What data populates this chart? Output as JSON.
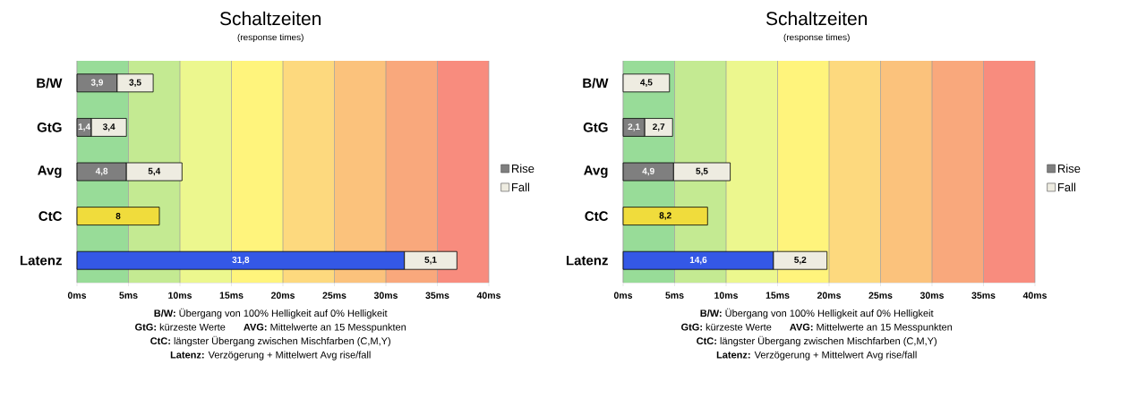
{
  "chart_data": [
    {
      "type": "bar",
      "orientation": "horizontal",
      "stacked": true,
      "title": "Schaltzeiten",
      "subtitle": "(response times)",
      "categories": [
        "B/W",
        "GtG",
        "Avg",
        "CtC",
        "Latenz"
      ],
      "series": [
        {
          "name": "Rise",
          "color": "#7f7f7f",
          "colors": [
            "#7f7f7f",
            "#7f7f7f",
            "#7f7f7f",
            "#f0dc3c",
            "#3458e6"
          ],
          "values": [
            3.9,
            1.4,
            4.8,
            8,
            31.8
          ],
          "value_labels": [
            "3,9",
            "1,4",
            "4,8",
            "8",
            "31,8"
          ]
        },
        {
          "name": "Fall",
          "color": "#eeece1",
          "values": [
            3.5,
            3.4,
            5.4,
            null,
            5.1
          ],
          "value_labels": [
            "3,5",
            "3,4",
            "5,4",
            null,
            "5,1"
          ]
        }
      ],
      "xlim": [
        0,
        40
      ],
      "xticks": [
        {
          "value": 0,
          "label": "0ms"
        },
        {
          "value": 5,
          "label": "5ms"
        },
        {
          "value": 10,
          "label": "10ms"
        },
        {
          "value": 15,
          "label": "15ms"
        },
        {
          "value": 20,
          "label": "20ms"
        },
        {
          "value": 25,
          "label": "25ms"
        },
        {
          "value": 30,
          "label": "30ms"
        },
        {
          "value": 35,
          "label": "35ms"
        },
        {
          "value": 40,
          "label": "40ms"
        }
      ],
      "grid": "x",
      "legend": "right",
      "bands": [
        {
          "axis": "x",
          "from": 0,
          "to": 5,
          "color": "#98dc98"
        },
        {
          "axis": "x",
          "from": 5,
          "to": 10,
          "color": "#c4ea92"
        },
        {
          "axis": "x",
          "from": 10,
          "to": 15,
          "color": "#ecf78e"
        },
        {
          "axis": "x",
          "from": 15,
          "to": 20,
          "color": "#fff47c"
        },
        {
          "axis": "x",
          "from": 20,
          "to": 25,
          "color": "#fdd97e"
        },
        {
          "axis": "x",
          "from": 25,
          "to": 30,
          "color": "#fbc27c"
        },
        {
          "axis": "x",
          "from": 30,
          "to": 35,
          "color": "#f9a87c"
        },
        {
          "axis": "x",
          "from": 35,
          "to": 40,
          "color": "#f88c7e"
        }
      ],
      "annotations": [
        "**B/W:** Übergang von 100% Helligkeit auf 0% Helligkeit",
        "**GtG:** kürzeste Werte",
        "**AVG:** Mittelwerte an 15 Messpunkten",
        "**CtC:** längster Übergang zwischen Mischfarben (C,M,Y)",
        "**Latenz:** Verzögerung + Mittelwert Avg rise/fall"
      ]
    },
    {
      "type": "bar",
      "orientation": "horizontal",
      "stacked": true,
      "title": "Schaltzeiten",
      "subtitle": "(response times)",
      "categories": [
        "B/W",
        "GtG",
        "Avg",
        "CtC",
        "Latenz"
      ],
      "series": [
        {
          "name": "Rise",
          "color": "#7f7f7f",
          "colors": [
            "#7f7f7f",
            "#7f7f7f",
            "#7f7f7f",
            "#f0dc3c",
            "#3458e6"
          ],
          "values": [
            null,
            2.1,
            4.9,
            8.2,
            14.6
          ],
          "value_labels": [
            null,
            "2,1",
            "4,9",
            "8,2",
            "14,6"
          ]
        },
        {
          "name": "Fall",
          "color": "#eeece1",
          "values": [
            4.5,
            2.7,
            5.5,
            null,
            5.2
          ],
          "value_labels": [
            "4,5",
            "2,7",
            "5,5",
            null,
            "5,2"
          ]
        }
      ],
      "xlim": [
        0,
        40
      ],
      "xticks": [
        {
          "value": 0,
          "label": "0ms"
        },
        {
          "value": 5,
          "label": "5ms"
        },
        {
          "value": 10,
          "label": "10ms"
        },
        {
          "value": 15,
          "label": "15ms"
        },
        {
          "value": 20,
          "label": "20ms"
        },
        {
          "value": 25,
          "label": "25ms"
        },
        {
          "value": 30,
          "label": "30ms"
        },
        {
          "value": 35,
          "label": "35ms"
        },
        {
          "value": 40,
          "label": "40ms"
        }
      ],
      "grid": "x",
      "legend": "right",
      "bands": [
        {
          "axis": "x",
          "from": 0,
          "to": 5,
          "color": "#98dc98"
        },
        {
          "axis": "x",
          "from": 5,
          "to": 10,
          "color": "#c4ea92"
        },
        {
          "axis": "x",
          "from": 10,
          "to": 15,
          "color": "#ecf78e"
        },
        {
          "axis": "x",
          "from": 15,
          "to": 20,
          "color": "#fff47c"
        },
        {
          "axis": "x",
          "from": 20,
          "to": 25,
          "color": "#fdd97e"
        },
        {
          "axis": "x",
          "from": 25,
          "to": 30,
          "color": "#fbc27c"
        },
        {
          "axis": "x",
          "from": 30,
          "to": 35,
          "color": "#f9a87c"
        },
        {
          "axis": "x",
          "from": 35,
          "to": 40,
          "color": "#f88c7e"
        }
      ],
      "annotations": [
        "**B/W:** Übergang von 100% Helligkeit auf 0% Helligkeit",
        "**GtG:** kürzeste Werte",
        "**AVG:** Mittelwerte an 15 Messpunkten",
        "**CtC:** längster Übergang zwischen Mischfarben (C,M,Y)",
        "**Latenz:** Verzögerung + Mittelwert Avg rise/fall"
      ]
    }
  ]
}
